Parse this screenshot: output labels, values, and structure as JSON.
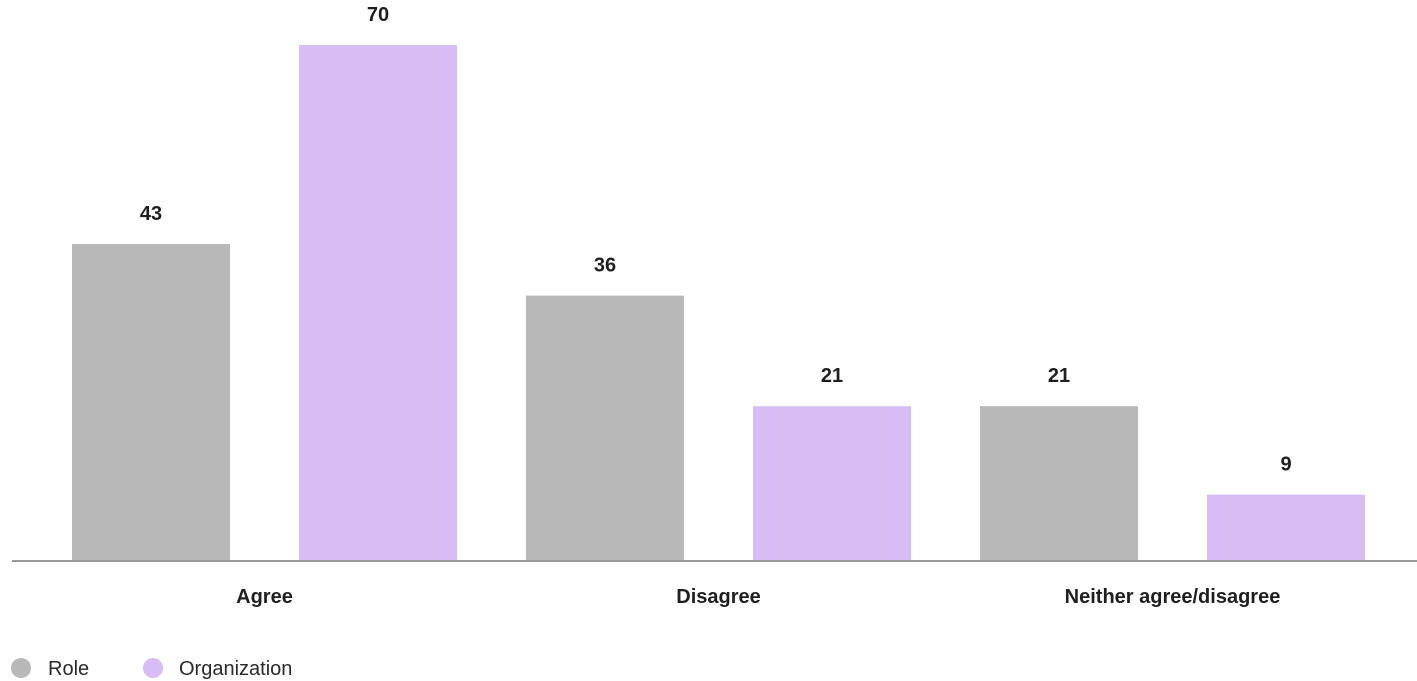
{
  "chart_data": {
    "type": "bar",
    "categories": [
      "Agree",
      "Disagree",
      "Neither agree/disagree"
    ],
    "series": [
      {
        "name": "Role",
        "values": [
          43,
          36,
          21
        ],
        "color": "#b8b8b8"
      },
      {
        "name": "Organization",
        "values": [
          70,
          21,
          9
        ],
        "color": "#d7bdf4"
      }
    ],
    "title": "",
    "xlabel": "",
    "ylabel": "",
    "ylim": [
      0,
      70
    ],
    "grid": false,
    "legend": "bottom-left",
    "axis_color": "#9a9a9a"
  }
}
